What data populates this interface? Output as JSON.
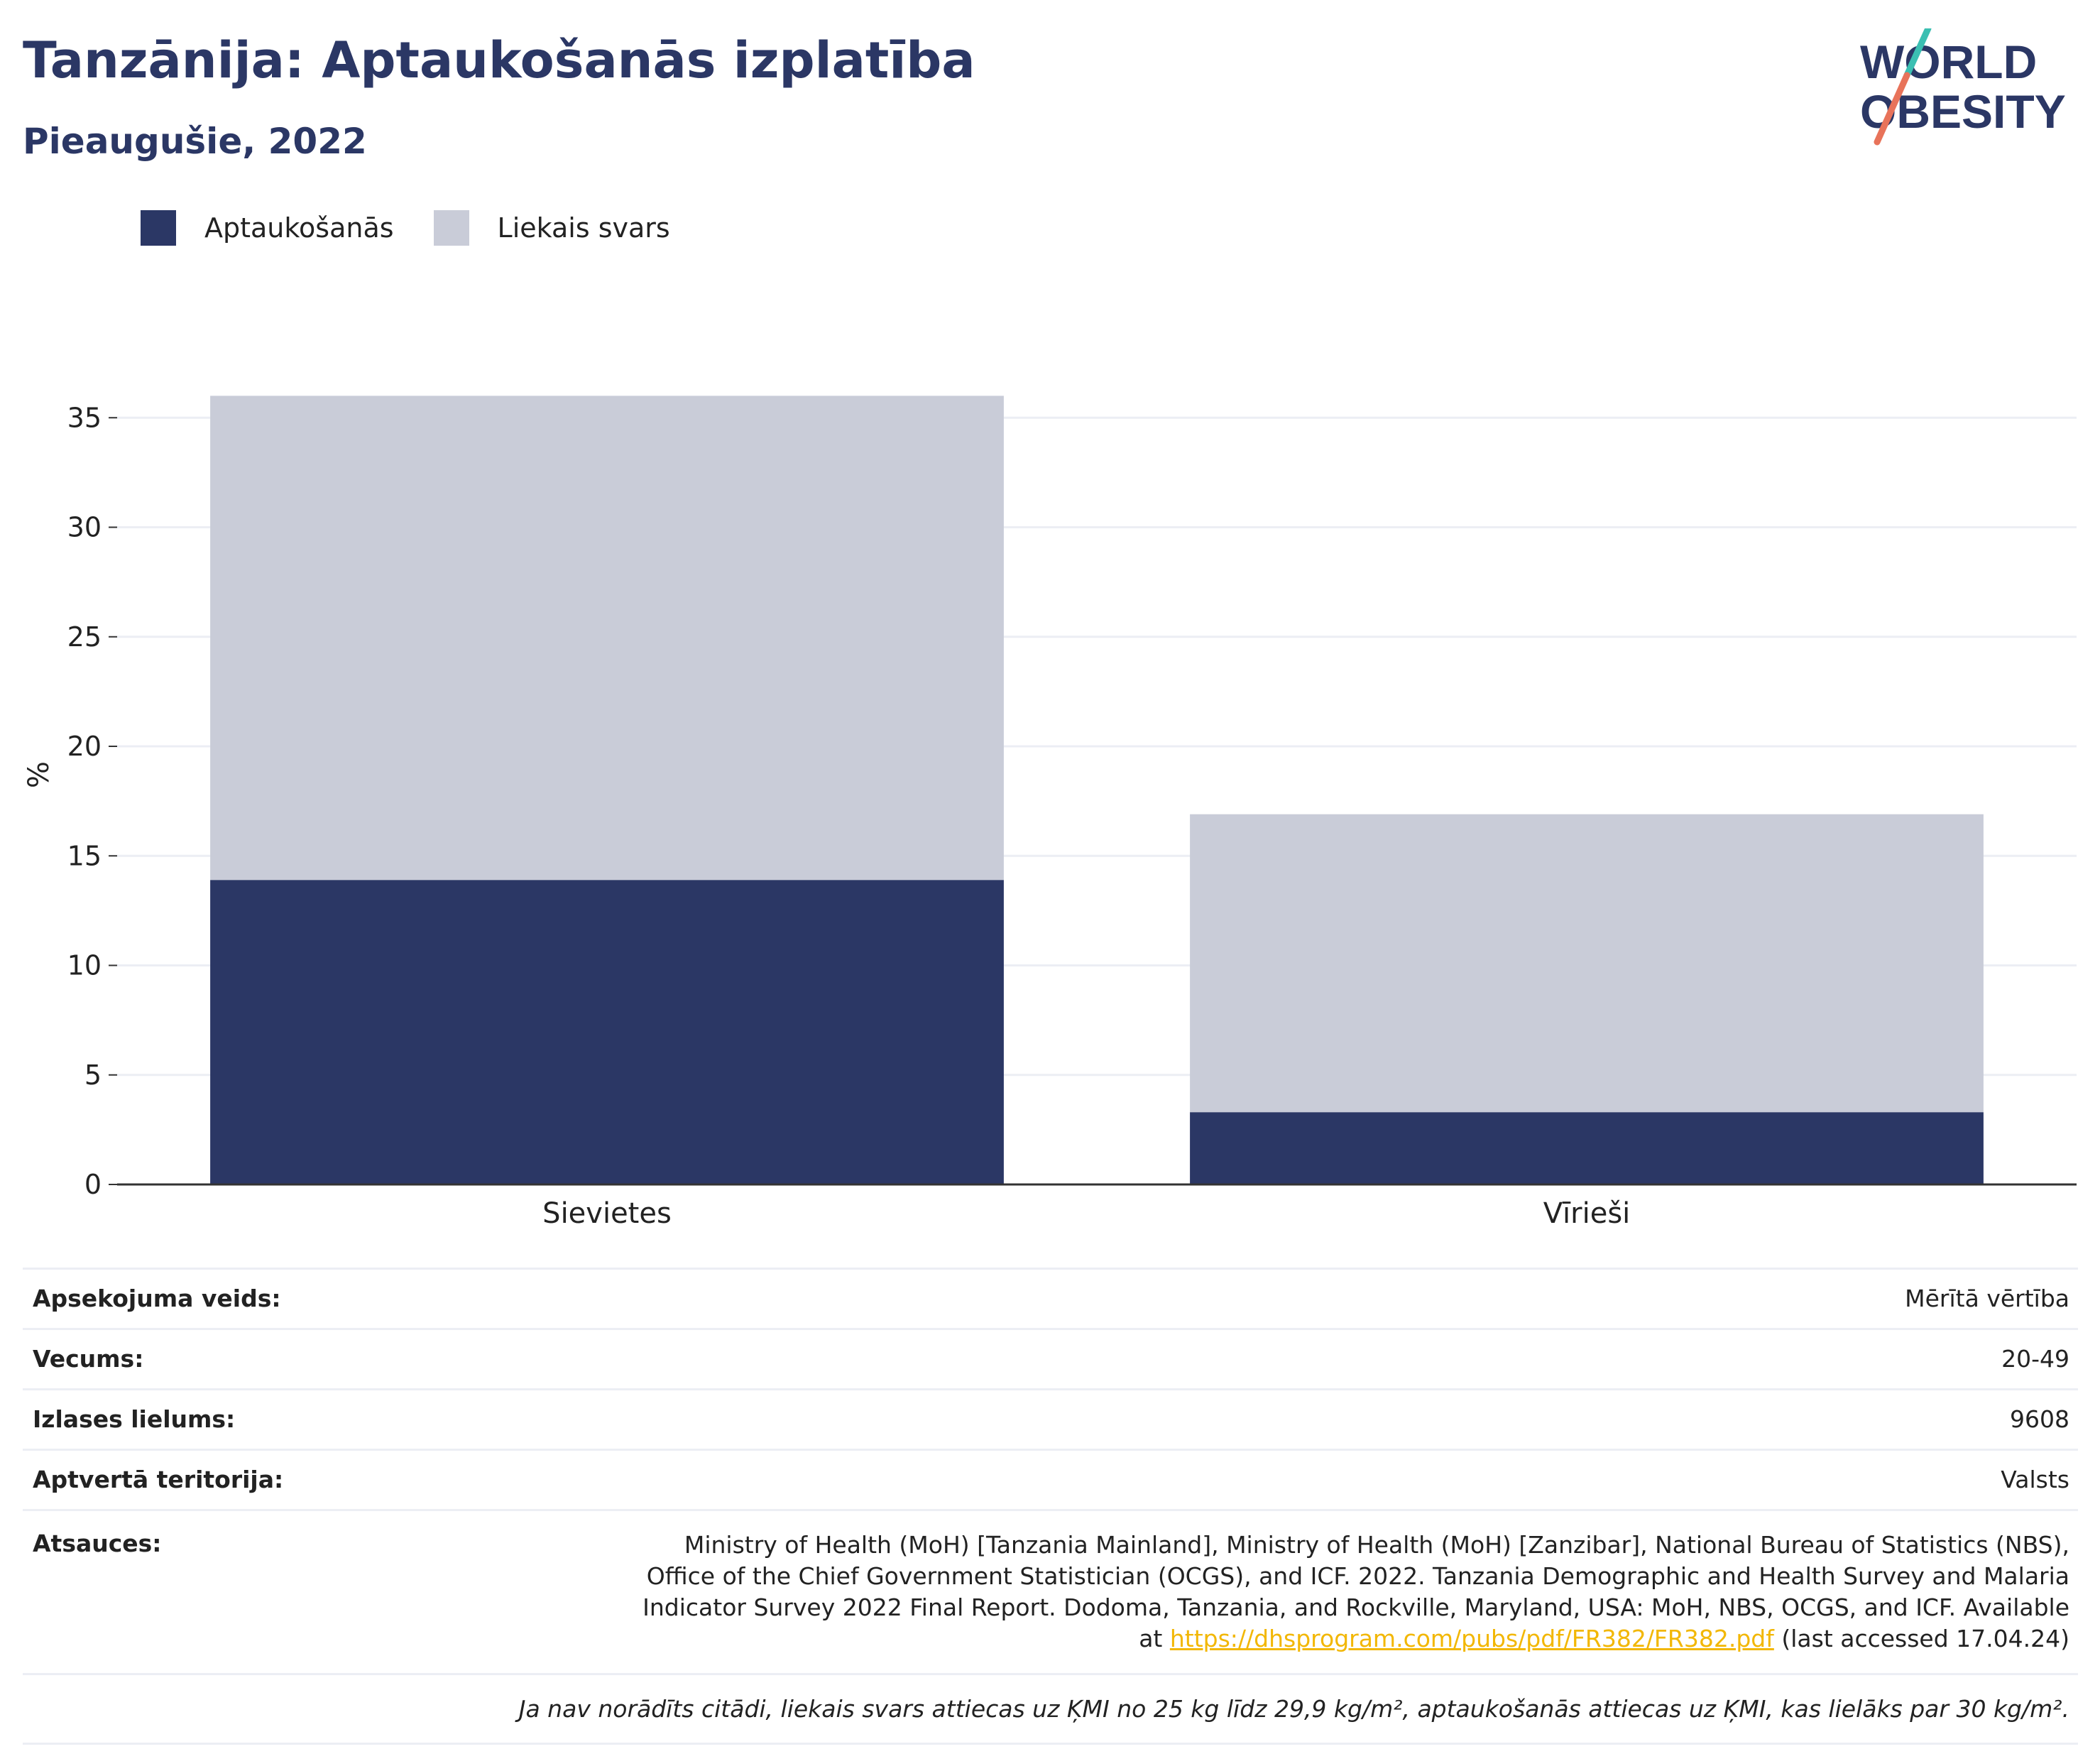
{
  "header": {
    "title": "Tanzānija: Aptaukošanās izplatība",
    "subtitle": "Pieaugušie, 2022"
  },
  "logo": {
    "line1": "WORLD",
    "line2": "OBESITY",
    "colors": {
      "text": "#2b3765",
      "teal": "#3bbfb2",
      "coral": "#e8735a"
    }
  },
  "legend": [
    {
      "label": "Aptaukošanās",
      "color": "#2b3765"
    },
    {
      "label": "Liekais svars",
      "color": "#c9ccd8"
    }
  ],
  "chart_data": {
    "type": "bar",
    "stacked": true,
    "categories": [
      "Sievietes",
      "Vīrieši"
    ],
    "series": [
      {
        "name": "Aptaukošanās",
        "values": [
          13.9,
          3.3
        ],
        "color": "#2b3765"
      },
      {
        "name": "Liekais svars",
        "values": [
          22.1,
          13.6
        ],
        "color": "#c9ccd8"
      }
    ],
    "ylabel": "%",
    "ylim": [
      0,
      36
    ],
    "yticks": [
      0,
      5,
      10,
      15,
      20,
      25,
      30,
      35
    ],
    "grid": true,
    "legend_position": "top-left"
  },
  "meta": {
    "survey_type_label": "Apsekojuma veids:",
    "survey_type_value": "Mērītā vērtība",
    "age_label": "Vecums:",
    "age_value": "20-49",
    "sample_label": "Izlases lielums:",
    "sample_value": "9608",
    "area_label": "Aptvertā teritorija:",
    "area_value": "Valsts",
    "refs_label": "Atsauces:",
    "refs_text": "Ministry of Health (MoH) [Tanzania Mainland], Ministry of Health (MoH) [Zanzibar], National Bureau of Statistics (NBS), Office of the Chief Government Statistician (OCGS), and ICF. 2022. Tanzania Demographic and Health Survey and Malaria Indicator Survey 2022 Final Report. Dodoma, Tanzania, and Rockville, Maryland, USA: MoH, NBS, OCGS, and ICF. Available at",
    "refs_link": "https://dhsprogram.com/pubs/pdf/FR382/FR382.pdf",
    "refs_suffix": " (last accessed 17.04.24)",
    "note": "Ja nav norādīts citādi, liekais svars attiecas uz ĶMI no 25 kg līdz 29,9 kg/m², aptaukošanās attiecas uz ĶMI, kas lielāks par 30 kg/m²."
  }
}
